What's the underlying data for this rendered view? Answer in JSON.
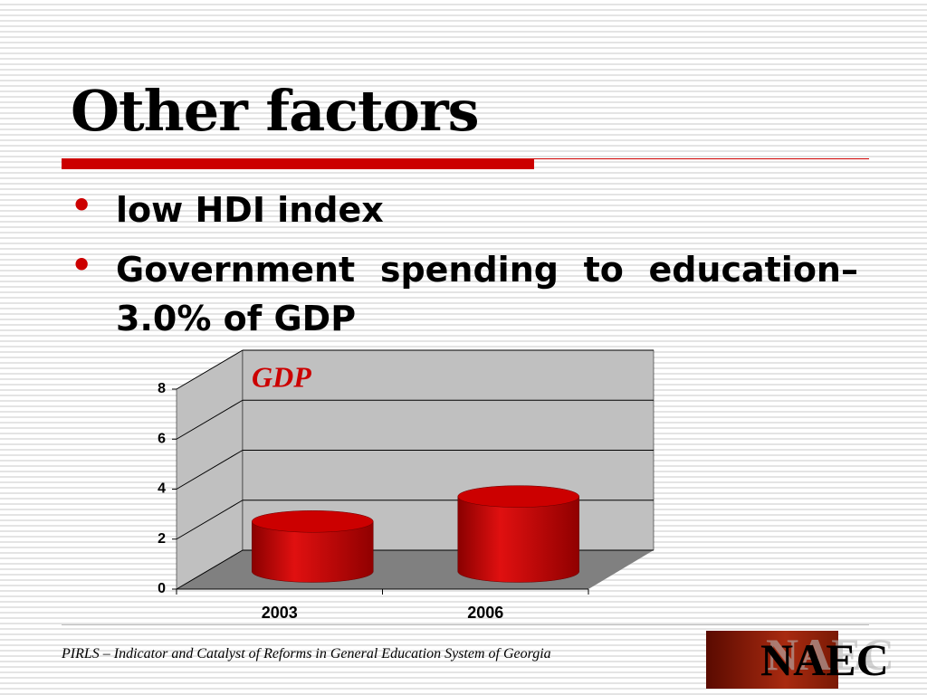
{
  "title": "Other factors",
  "bullets": [
    "low HDI index",
    "Government spending to education– 3.0% of GDP"
  ],
  "footer": "PIRLS – Indicator and Catalyst of Reforms in General Education System of Georgia",
  "logo": "NAEC",
  "chart_data": {
    "type": "cylinder",
    "title": "GDP",
    "categories": [
      "2003",
      "2006"
    ],
    "values": [
      2.0,
      3.0
    ],
    "color": "#cc0000",
    "ylim": [
      0,
      8
    ],
    "yticks": [
      0,
      2,
      4,
      6,
      8
    ],
    "grid": true
  }
}
